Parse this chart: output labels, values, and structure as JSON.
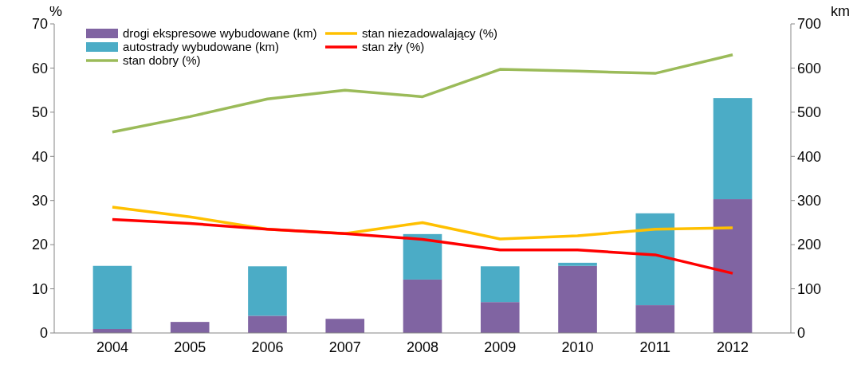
{
  "chart_data": {
    "type": "bar",
    "stacked": true,
    "ylabel": "%",
    "y2label": "km",
    "categories": [
      "2004",
      "2005",
      "2006",
      "2007",
      "2008",
      "2009",
      "2010",
      "2011",
      "2012"
    ],
    "series": [
      {
        "name": "drogi ekspresowe wybudowane (km)",
        "axis": "y2",
        "color": "#8064a2",
        "values": [
          9,
          25,
          39,
          32,
          121,
          70,
          152,
          63,
          303
        ]
      },
      {
        "name": "autostrady wybudowane (km)",
        "axis": "y2",
        "color": "#4bacc6",
        "values": [
          143,
          0,
          112,
          0,
          103,
          81,
          7,
          208,
          229
        ]
      },
      {
        "name": "stan dobry (%)",
        "type": "line",
        "color": "#9bbb59",
        "values": [
          45.5,
          49,
          53,
          55,
          53.5,
          59.7,
          59.3,
          58.8,
          63
        ]
      },
      {
        "name": "stan niezadowalający (%)",
        "type": "line",
        "color": "#ffc000",
        "values": [
          28.5,
          26.3,
          23.5,
          22.5,
          25,
          21.3,
          22,
          23.5,
          23.8
        ]
      },
      {
        "name": "stan zły (%)",
        "type": "line",
        "color": "#ff0000",
        "values": [
          25.7,
          24.8,
          23.5,
          22.5,
          21.2,
          18.8,
          18.8,
          17.7,
          13.5
        ]
      }
    ],
    "ylim": [
      0,
      70
    ],
    "yticks": [
      0,
      10,
      20,
      30,
      40,
      50,
      60,
      70
    ],
    "y2lim": [
      0,
      700
    ],
    "y2ticks": [
      0,
      100,
      200,
      300,
      400,
      500,
      600,
      700
    ],
    "grid": false,
    "legend": "top left",
    "marker": "none",
    "line_style": "solid"
  }
}
